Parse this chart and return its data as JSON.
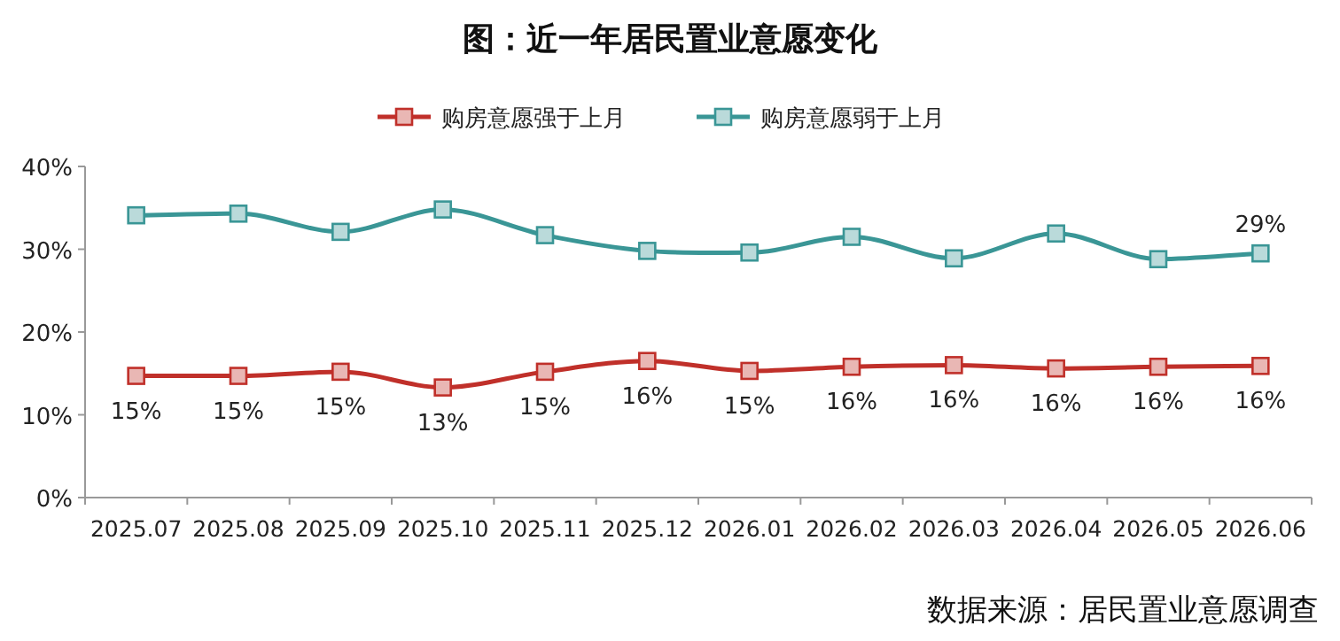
{
  "chart_data": {
    "type": "line",
    "title": "图：近一年居民置业意愿变化",
    "categories": [
      "2025.07",
      "2025.08",
      "2025.09",
      "2025.10",
      "2025.11",
      "2025.12",
      "2026.01",
      "2026.02",
      "2026.03",
      "2026.04",
      "2026.05",
      "2026.06"
    ],
    "series": [
      {
        "name": "购房意愿强于上月",
        "color": "#c0302a",
        "values": [
          14.7,
          14.7,
          15.2,
          13.3,
          15.2,
          16.5,
          15.3,
          15.8,
          16.0,
          15.6,
          15.8,
          15.9
        ],
        "value_labels": [
          "15%",
          "15%",
          "15%",
          "13%",
          "15%",
          "16%",
          "15%",
          "16%",
          "16%",
          "16%",
          "16%",
          "16%"
        ]
      },
      {
        "name": "购房意愿弱于上月",
        "color": "#3a9696",
        "values": [
          34.1,
          34.3,
          32.1,
          34.8,
          31.7,
          29.8,
          29.6,
          31.5,
          28.9,
          31.9,
          28.8,
          29.5
        ],
        "value_labels": [
          null,
          null,
          null,
          null,
          null,
          null,
          null,
          null,
          null,
          null,
          null,
          "29%"
        ]
      }
    ],
    "ylim": [
      0,
      40
    ],
    "yticks": [
      {
        "value": 0,
        "label": "0%"
      },
      {
        "value": 10,
        "label": "10%"
      },
      {
        "value": 20,
        "label": "20%"
      },
      {
        "value": 30,
        "label": "30%"
      },
      {
        "value": 40,
        "label": "40%"
      }
    ],
    "legend": "top",
    "marker": "square",
    "line_style": "solid",
    "annotations": [
      "数据来源：居民置业意愿调查"
    ]
  }
}
